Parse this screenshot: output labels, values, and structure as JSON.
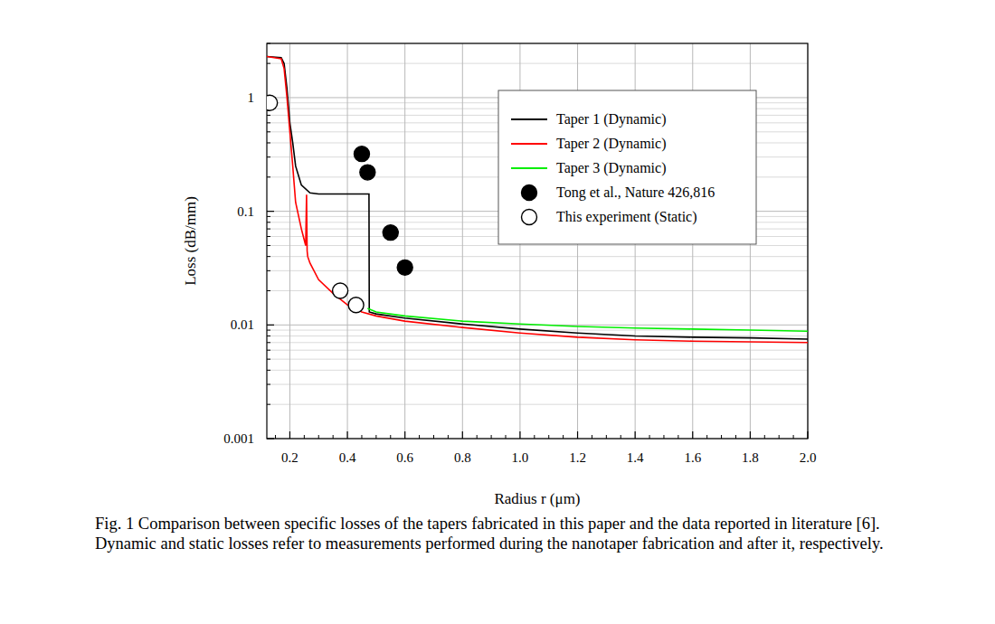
{
  "chart_data": {
    "type": "line",
    "caption": "Fig. 1 Comparison between specific losses of the tapers fabricated in this paper and the data reported in literature [6]. Dynamic and static losses refer to measurements performed during the nanotaper fabrication and after it, respectively.",
    "x_label": "Radius r (μm)",
    "y_label": "Loss (dB/mm)",
    "xlim": [
      0.12,
      2.0
    ],
    "ylim": [
      0.001,
      3
    ],
    "xticks": [
      0.2,
      0.4,
      0.6,
      0.8,
      {
        "value": 1,
        "label": "1.0"
      },
      1.2,
      1.4,
      1.6,
      1.8,
      {
        "value": 2,
        "label": "2.0"
      }
    ],
    "yticks": [
      0.001,
      0.01,
      0.1,
      1
    ],
    "log": "y",
    "grid": true,
    "legend": "upper right",
    "series": [
      {
        "name": "Taper 1 (Dynamic)",
        "type": "line",
        "color": "#000000",
        "line_style": "solid",
        "x": [
          0.12,
          0.17,
          0.18,
          0.19,
          0.2,
          0.21,
          0.22,
          0.24,
          0.27,
          0.3,
          0.4,
          0.475,
          0.476,
          0.5,
          0.6,
          0.8,
          1.0,
          1.2,
          1.4,
          1.6,
          1.8,
          2.0
        ],
        "values": [
          2.3,
          2.25,
          2.0,
          1.2,
          0.6,
          0.4,
          0.25,
          0.17,
          0.145,
          0.142,
          0.142,
          0.142,
          0.013,
          0.0125,
          0.0115,
          0.0102,
          0.0092,
          0.0085,
          0.008,
          0.0078,
          0.0077,
          0.0075
        ]
      },
      {
        "name": "Taper 2 (Dynamic)",
        "type": "line",
        "color": "#ff0000",
        "line_style": "solid",
        "x": [
          0.12,
          0.17,
          0.18,
          0.19,
          0.2,
          0.21,
          0.22,
          0.24,
          0.255,
          0.258,
          0.26,
          0.262,
          0.27,
          0.3,
          0.35,
          0.4,
          0.45,
          0.5,
          0.6,
          0.8,
          1.0,
          1.2,
          1.4,
          1.6,
          1.8,
          2.0
        ],
        "values": [
          2.3,
          2.2,
          1.8,
          1.0,
          0.5,
          0.25,
          0.12,
          0.07,
          0.05,
          0.14,
          0.045,
          0.04,
          0.035,
          0.025,
          0.019,
          0.015,
          0.013,
          0.012,
          0.0108,
          0.0095,
          0.0085,
          0.0078,
          0.0074,
          0.0072,
          0.0071,
          0.007
        ]
      },
      {
        "name": "Taper 3 (Dynamic)",
        "type": "line",
        "color": "#00ee00",
        "line_style": "solid",
        "x": [
          0.47,
          0.5,
          0.6,
          0.8,
          1.0,
          1.2,
          1.4,
          1.6,
          1.8,
          2.0
        ],
        "values": [
          0.014,
          0.013,
          0.012,
          0.0108,
          0.0102,
          0.0097,
          0.0094,
          0.0092,
          0.009,
          0.0088
        ]
      },
      {
        "name": "Tong et al., Nature 426,816",
        "type": "scatter",
        "color": "#000000",
        "marker": "filled-circle",
        "x": [
          0.45,
          0.47,
          0.55,
          0.6
        ],
        "values": [
          0.32,
          0.22,
          0.065,
          0.032
        ]
      },
      {
        "name": "This experiment (Static)",
        "type": "scatter",
        "color": "#000000",
        "marker": "open-circle",
        "x": [
          0.13,
          0.375,
          0.43
        ],
        "values": [
          0.9,
          0.02,
          0.015
        ]
      }
    ]
  }
}
